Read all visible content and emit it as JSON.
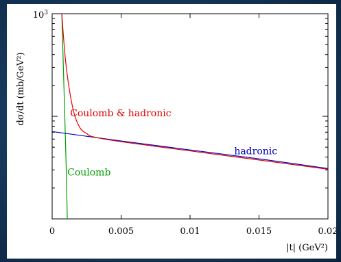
{
  "chart_data": {
    "type": "line",
    "xlabel": "|t|   (GeV²)",
    "ylabel": "dσ/dt   (mb/GeV²)",
    "xlim": [
      0,
      0.02
    ],
    "y_scale": "log",
    "y_top_tick_label": "10³",
    "x_tick_labels": [
      "0",
      "0.005",
      "0.01",
      "0.015",
      "0.02"
    ],
    "x_ticks": [
      0,
      0.005,
      0.01,
      0.015,
      0.02
    ],
    "series": [
      {
        "name": "Coulomb & hadronic",
        "color": "#e00000",
        "x": [
          0.0007,
          0.001,
          0.0015,
          0.002,
          0.0025,
          0.003,
          0.005,
          0.01,
          0.015,
          0.02
        ],
        "y": [
          1000,
          320,
          120,
          78,
          68,
          63,
          56.5,
          46,
          37.5,
          30.5
        ]
      },
      {
        "name": "hadronic",
        "color": "#0000c0",
        "x": [
          0,
          0.005,
          0.01,
          0.015,
          0.02
        ],
        "y": [
          71,
          57.5,
          47,
          38.5,
          31
        ]
      },
      {
        "name": "Coulomb",
        "color": "#00a000",
        "x": [
          0.0007,
          0.001,
          0.0011
        ],
        "y": [
          1000,
          40,
          10
        ]
      }
    ],
    "grid": false
  }
}
